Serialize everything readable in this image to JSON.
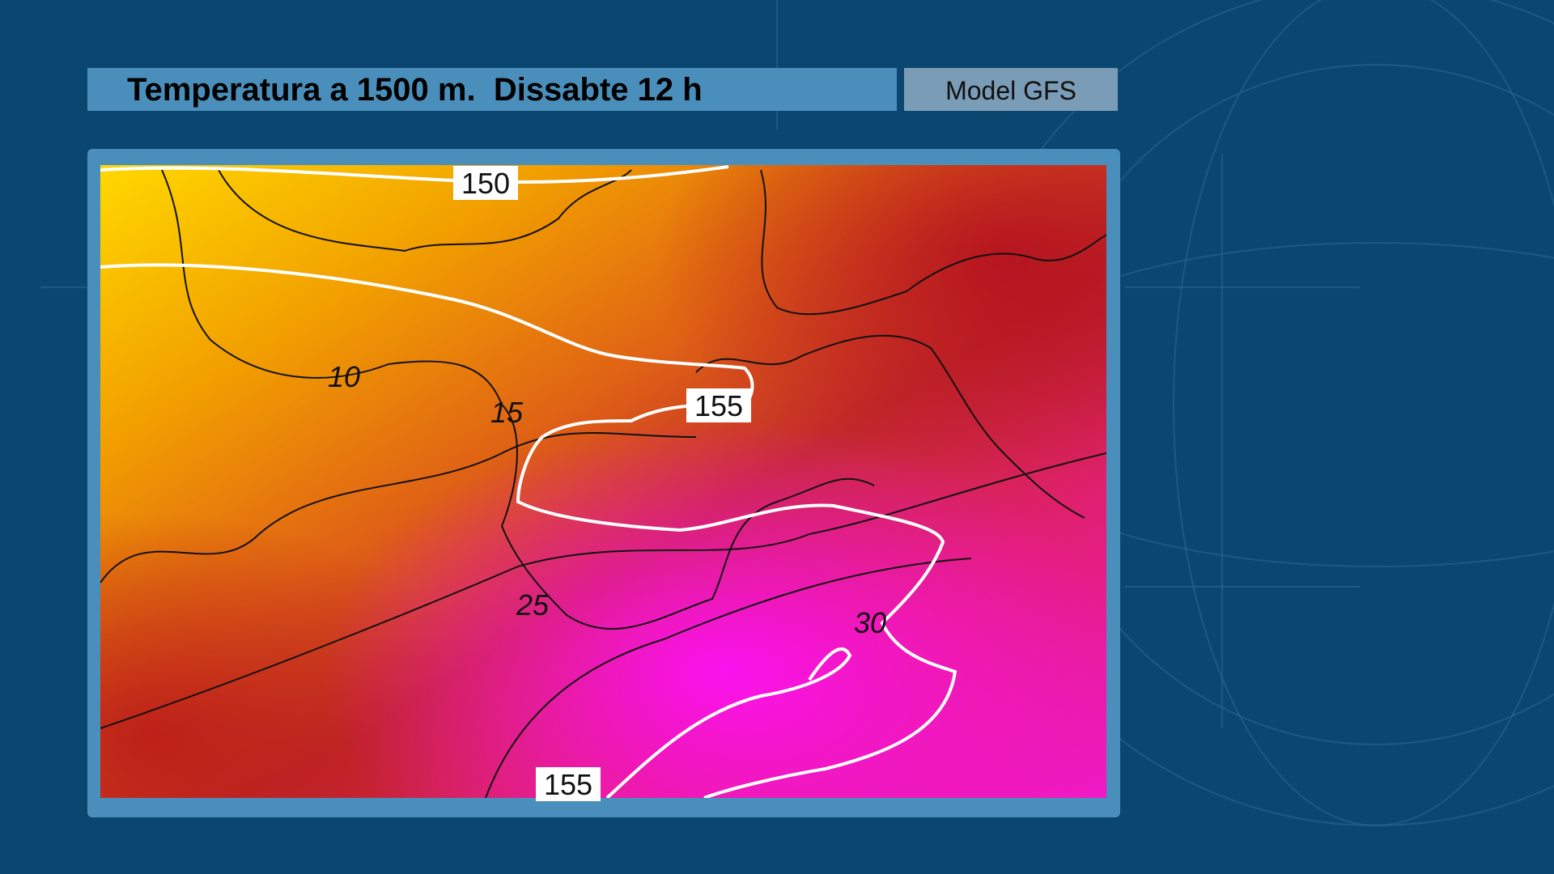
{
  "header": {
    "title": "Temperatura a 1500 m.  Dissabte 12 h",
    "model": "Model GFS"
  },
  "map": {
    "contour_labels": [
      "150",
      "10",
      "155",
      "15",
      "25",
      "30",
      "155"
    ]
  }
}
